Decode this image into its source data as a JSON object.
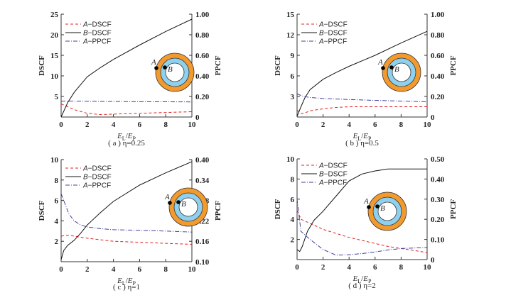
{
  "chart_data": [
    {
      "id": "a",
      "type": "line",
      "caption": "( a ) η=0.25",
      "xlabel": "E_L/E_P",
      "ylabel": "DSCF",
      "y2label": "PPCF",
      "xlim": [
        0,
        10
      ],
      "ylim": [
        0,
        25
      ],
      "y2lim": [
        0,
        1.0
      ],
      "xticks": [
        "0",
        "2",
        "4",
        "6",
        "8",
        "10"
      ],
      "yticks": [
        "5",
        "10",
        "15",
        "20",
        "25"
      ],
      "y2ticks": [
        "0",
        "0.20",
        "0.40",
        "0.60",
        "0.80",
        "1.00"
      ],
      "legend": [
        "A−DSCF",
        "B−DSCF",
        "A−PPCF"
      ],
      "series": [
        {
          "name": "A-DSCF",
          "axis": "left",
          "color": "#e02020",
          "x": [
            0,
            0.5,
            1,
            2,
            3,
            4,
            6,
            8,
            10
          ],
          "y": [
            3.2,
            2.5,
            1.8,
            0.9,
            0.6,
            0.7,
            0.9,
            1.1,
            1.3
          ]
        },
        {
          "name": "B-DSCF",
          "axis": "left",
          "color": "#111111",
          "x": [
            0,
            0.5,
            1,
            2,
            3,
            4,
            6,
            8,
            10
          ],
          "y": [
            0,
            3.5,
            6,
            9.8,
            12,
            14,
            17.5,
            20.8,
            23.8
          ]
        },
        {
          "name": "A-PPCF",
          "axis": "right",
          "color": "#4040a0",
          "x": [
            0,
            2,
            4,
            6,
            8,
            10
          ],
          "y": [
            0.155,
            0.153,
            0.151,
            0.149,
            0.148,
            0.147
          ]
        }
      ]
    },
    {
      "id": "b",
      "type": "line",
      "caption": "( b ) η=0.5",
      "xlabel": "E_L/E_P",
      "ylabel": "DSCF",
      "y2label": "PPCF",
      "xlim": [
        0,
        10
      ],
      "ylim": [
        0,
        15
      ],
      "y2lim": [
        0,
        1.0
      ],
      "xticks": [
        "0",
        "2",
        "4",
        "6",
        "8",
        "10"
      ],
      "yticks": [
        "3",
        "6",
        "9",
        "12",
        "15"
      ],
      "y2ticks": [
        "0",
        "0.20",
        "0.40",
        "0.60",
        "0.80",
        "1.00"
      ],
      "legend": [
        "A−DSCF",
        "B−DSCF",
        "A−PPCF"
      ],
      "series": [
        {
          "name": "A-DSCF",
          "axis": "left",
          "color": "#e02020",
          "x": [
            0,
            0.3,
            0.6,
            1,
            2,
            3,
            4,
            6,
            8,
            10
          ],
          "y": [
            1.0,
            0.5,
            0.6,
            0.9,
            1.2,
            1.4,
            1.5,
            1.5,
            1.5,
            1.5
          ]
        },
        {
          "name": "B-DSCF",
          "axis": "left",
          "color": "#111111",
          "x": [
            0,
            0.3,
            0.6,
            1,
            2,
            3,
            4,
            6,
            8,
            10
          ],
          "y": [
            0.1,
            1.5,
            2.8,
            4.0,
            5.5,
            6.5,
            7.4,
            9.0,
            10.8,
            12.5
          ]
        },
        {
          "name": "A-PPCF",
          "axis": "right",
          "color": "#4040a0",
          "x": [
            0,
            0.5,
            1,
            2,
            4,
            6,
            8,
            10
          ],
          "y": [
            0.225,
            0.2,
            0.19,
            0.18,
            0.17,
            0.162,
            0.155,
            0.148
          ]
        }
      ]
    },
    {
      "id": "c",
      "type": "line",
      "caption": "( c ) η=1",
      "xlabel": "E_L/E_P",
      "ylabel": "DSCF",
      "y2label": "PPCF",
      "xlim": [
        0,
        10
      ],
      "ylim": [
        0,
        10
      ],
      "y2lim": [
        0.1,
        0.4
      ],
      "xticks": [
        "0",
        "2",
        "4",
        "6",
        "8",
        "10"
      ],
      "yticks": [
        "2",
        "4",
        "6",
        "8",
        "10"
      ],
      "y2ticks": [
        "0.10",
        "0.16",
        "0.22",
        "0.28",
        "0.34",
        "0.40"
      ],
      "legend": [
        "A−DSCF",
        "B−DSCF",
        "A−PPCF"
      ],
      "series": [
        {
          "name": "A-DSCF",
          "axis": "left",
          "color": "#e02020",
          "x": [
            0,
            0.5,
            1,
            2,
            4,
            6,
            8,
            10
          ],
          "y": [
            2.5,
            2.6,
            2.5,
            2.3,
            2.0,
            1.9,
            1.8,
            1.7
          ]
        },
        {
          "name": "B-DSCF",
          "axis": "left",
          "color": "#111111",
          "x": [
            0,
            0.2,
            0.5,
            1,
            1.5,
            2,
            3,
            4,
            6,
            8,
            10
          ],
          "y": [
            0.2,
            1.1,
            1.6,
            2.1,
            2.8,
            3.6,
            4.8,
            5.9,
            7.5,
            8.7,
            9.8
          ]
        },
        {
          "name": "A-PPCF",
          "axis": "right",
          "color": "#4040a0",
          "x": [
            0,
            0.3,
            0.6,
            1,
            1.5,
            2,
            3,
            4,
            6,
            8,
            10
          ],
          "y": [
            0.3,
            0.27,
            0.24,
            0.22,
            0.208,
            0.202,
            0.197,
            0.194,
            0.192,
            0.19,
            0.187
          ]
        }
      ]
    },
    {
      "id": "d",
      "type": "line",
      "caption": "( d ) η=2",
      "xlabel": "E_L/E_P",
      "ylabel": "DSCF",
      "y2label": "PPCF",
      "xlim": [
        0,
        10
      ],
      "ylim": [
        0,
        10
      ],
      "y2lim": [
        0,
        0.5
      ],
      "xticks": [
        "0",
        "2",
        "4",
        "6",
        "8",
        "10"
      ],
      "yticks": [
        "2",
        "4",
        "6",
        "8",
        "10"
      ],
      "y2ticks": [
        "0",
        "0.10",
        "0.20",
        "0.30",
        "0.40",
        "0.50"
      ],
      "legend": [
        "A−DSCF",
        "B−DSCF",
        "A−PPCF"
      ],
      "series": [
        {
          "name": "A-DSCF",
          "axis": "left",
          "color": "#e02020",
          "x": [
            0,
            0.3,
            1,
            2,
            3,
            4,
            5,
            6,
            7,
            8,
            9,
            10
          ],
          "y": [
            4.9,
            4.0,
            3.6,
            3.0,
            2.6,
            2.2,
            1.9,
            1.6,
            1.3,
            1.1,
            0.9,
            0.7
          ]
        },
        {
          "name": "B-DSCF",
          "axis": "left",
          "color": "#111111",
          "x": [
            0,
            0.2,
            0.4,
            0.8,
            1.3,
            2,
            3,
            4,
            5,
            6,
            7,
            8,
            10
          ],
          "y": [
            1.0,
            0.8,
            1.3,
            2.8,
            3.9,
            4.8,
            6.3,
            7.8,
            8.5,
            8.8,
            9.0,
            9.0,
            9.0
          ]
        },
        {
          "name": "A-PPCF",
          "axis": "right",
          "color": "#4040a0",
          "x": [
            0,
            0.15,
            0.3,
            1,
            2,
            3,
            4,
            5,
            6,
            7,
            8,
            10
          ],
          "y": [
            0.3,
            0.22,
            0.14,
            0.1,
            0.05,
            0.022,
            0.024,
            0.03,
            0.038,
            0.048,
            0.055,
            0.06
          ]
        }
      ]
    }
  ],
  "inset": {
    "label_a": "A",
    "label_b": "B",
    "outer_color": "#f39a2e",
    "inner_color": "#8fd0ee"
  }
}
